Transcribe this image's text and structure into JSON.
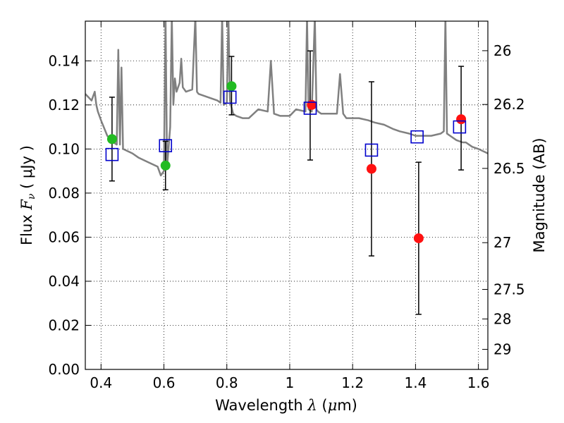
{
  "chart_data": {
    "type": "scatter",
    "xlabel": {
      "prefix": "Wavelength ",
      "symbol": "λ",
      "unit_open": " (",
      "unit_sym": "μ",
      "unit_close": "m)"
    },
    "ylabel": {
      "prefix": "Flux ",
      "symbol": "F",
      "subscript": "ν",
      "unit": " ( μJy )"
    },
    "y2label": "Magnitude (AB)",
    "xlim": [
      0.35,
      1.63
    ],
    "ylim": [
      0.0,
      0.158
    ],
    "grid": true,
    "x_ticks": [
      {
        "value": 0.4,
        "label": "0.4"
      },
      {
        "value": 0.6,
        "label": "0.6"
      },
      {
        "value": 0.8,
        "label": "0.8"
      },
      {
        "value": 1.0,
        "label": "1"
      },
      {
        "value": 1.2,
        "label": "1.2"
      },
      {
        "value": 1.4,
        "label": "1.4"
      },
      {
        "value": 1.6,
        "label": "1.6"
      }
    ],
    "y_ticks": [
      {
        "value": 0.0,
        "label": "0.00"
      },
      {
        "value": 0.02,
        "label": "0.02"
      },
      {
        "value": 0.04,
        "label": "0.04"
      },
      {
        "value": 0.06,
        "label": "0.06"
      },
      {
        "value": 0.08,
        "label": "0.08"
      },
      {
        "value": 0.1,
        "label": "0.10"
      },
      {
        "value": 0.12,
        "label": "0.12"
      },
      {
        "value": 0.14,
        "label": "0.14"
      }
    ],
    "magnitude_ticks": [
      {
        "flux": 0.1446,
        "label": "26"
      },
      {
        "flux": 0.1202,
        "label": "26.2"
      },
      {
        "flux": 0.0912,
        "label": "26.5"
      },
      {
        "flux": 0.0575,
        "label": "27"
      },
      {
        "flux": 0.0363,
        "label": "27.5"
      },
      {
        "flux": 0.0229,
        "label": "28"
      },
      {
        "flux": 0.0091,
        "label": "29"
      }
    ],
    "series": [
      {
        "name": "model spectrum",
        "kind": "line",
        "color": "#808080",
        "x": [
          0.35,
          0.37,
          0.38,
          0.385,
          0.39,
          0.4,
          0.42,
          0.44,
          0.45,
          0.455,
          0.46,
          0.465,
          0.47,
          0.5,
          0.52,
          0.55,
          0.58,
          0.59,
          0.6,
          0.605,
          0.61,
          0.62,
          0.625,
          0.63,
          0.635,
          0.64,
          0.65,
          0.655,
          0.66,
          0.67,
          0.69,
          0.7,
          0.705,
          0.71,
          0.73,
          0.75,
          0.77,
          0.78,
          0.785,
          0.79,
          0.8,
          0.805,
          0.81,
          0.815,
          0.82,
          0.83,
          0.85,
          0.87,
          0.9,
          0.93,
          0.94,
          0.95,
          0.97,
          1.0,
          1.02,
          1.05,
          1.055,
          1.06,
          1.07,
          1.08,
          1.085,
          1.09,
          1.1,
          1.12,
          1.15,
          1.16,
          1.17,
          1.18,
          1.2,
          1.22,
          1.25,
          1.27,
          1.3,
          1.33,
          1.35,
          1.38,
          1.4,
          1.42,
          1.45,
          1.48,
          1.49,
          1.495,
          1.5,
          1.51,
          1.53,
          1.55,
          1.56,
          1.58,
          1.6,
          1.63
        ],
        "y": [
          0.125,
          0.122,
          0.126,
          0.12,
          0.117,
          0.113,
          0.106,
          0.103,
          0.102,
          0.145,
          0.102,
          0.137,
          0.1,
          0.098,
          0.096,
          0.094,
          0.092,
          0.088,
          0.09,
          0.16,
          0.092,
          0.11,
          0.16,
          0.12,
          0.132,
          0.126,
          0.13,
          0.141,
          0.128,
          0.126,
          0.127,
          0.16,
          0.126,
          0.125,
          0.124,
          0.123,
          0.122,
          0.121,
          0.16,
          0.12,
          0.121,
          0.16,
          0.122,
          0.119,
          0.116,
          0.115,
          0.114,
          0.114,
          0.118,
          0.117,
          0.14,
          0.116,
          0.115,
          0.115,
          0.118,
          0.117,
          0.16,
          0.118,
          0.117,
          0.16,
          0.118,
          0.117,
          0.116,
          0.116,
          0.116,
          0.134,
          0.116,
          0.114,
          0.114,
          0.114,
          0.113,
          0.112,
          0.111,
          0.109,
          0.108,
          0.107,
          0.106,
          0.106,
          0.106,
          0.107,
          0.108,
          0.16,
          0.107,
          0.106,
          0.104,
          0.103,
          0.103,
          0.101,
          0.1,
          0.098
        ]
      },
      {
        "name": "green observed",
        "kind": "points",
        "color": "#22bb22",
        "points": [
          {
            "x": 0.435,
            "y": 0.1045,
            "err": 0.0
          },
          {
            "x": 0.605,
            "y": 0.0925,
            "err": 0.0
          },
          {
            "x": 0.815,
            "y": 0.1285,
            "err": 0.0
          }
        ]
      },
      {
        "name": "red observed",
        "kind": "points",
        "color": "#ff1111",
        "points": [
          {
            "x": 1.07,
            "y": 0.12,
            "err": 0.0
          },
          {
            "x": 1.26,
            "y": 0.091,
            "err": 0.0
          },
          {
            "x": 1.41,
            "y": 0.0595,
            "err": 0.0
          },
          {
            "x": 1.545,
            "y": 0.1135,
            "err": 0.0
          }
        ]
      },
      {
        "name": "blue model photometry",
        "kind": "squares",
        "color": "#0000cc",
        "points": [
          {
            "x": 0.435,
            "y": 0.0975
          },
          {
            "x": 0.605,
            "y": 0.1015
          },
          {
            "x": 0.81,
            "y": 0.1235
          },
          {
            "x": 1.065,
            "y": 0.1185
          },
          {
            "x": 1.26,
            "y": 0.0995
          },
          {
            "x": 1.405,
            "y": 0.1055
          },
          {
            "x": 1.54,
            "y": 0.11
          }
        ]
      },
      {
        "name": "error bars",
        "kind": "errorbars",
        "color": "#000000",
        "bars": [
          {
            "x": 0.435,
            "low": 0.0855,
            "high": 0.1235
          },
          {
            "x": 0.605,
            "low": 0.0815,
            "high": 0.1035
          },
          {
            "x": 0.815,
            "low": 0.1155,
            "high": 0.142
          },
          {
            "x": 1.065,
            "low": 0.095,
            "high": 0.1445
          },
          {
            "x": 1.26,
            "low": 0.0515,
            "high": 0.1305
          },
          {
            "x": 1.41,
            "low": 0.025,
            "high": 0.094
          },
          {
            "x": 1.545,
            "low": 0.0905,
            "high": 0.1375
          }
        ]
      }
    ]
  }
}
